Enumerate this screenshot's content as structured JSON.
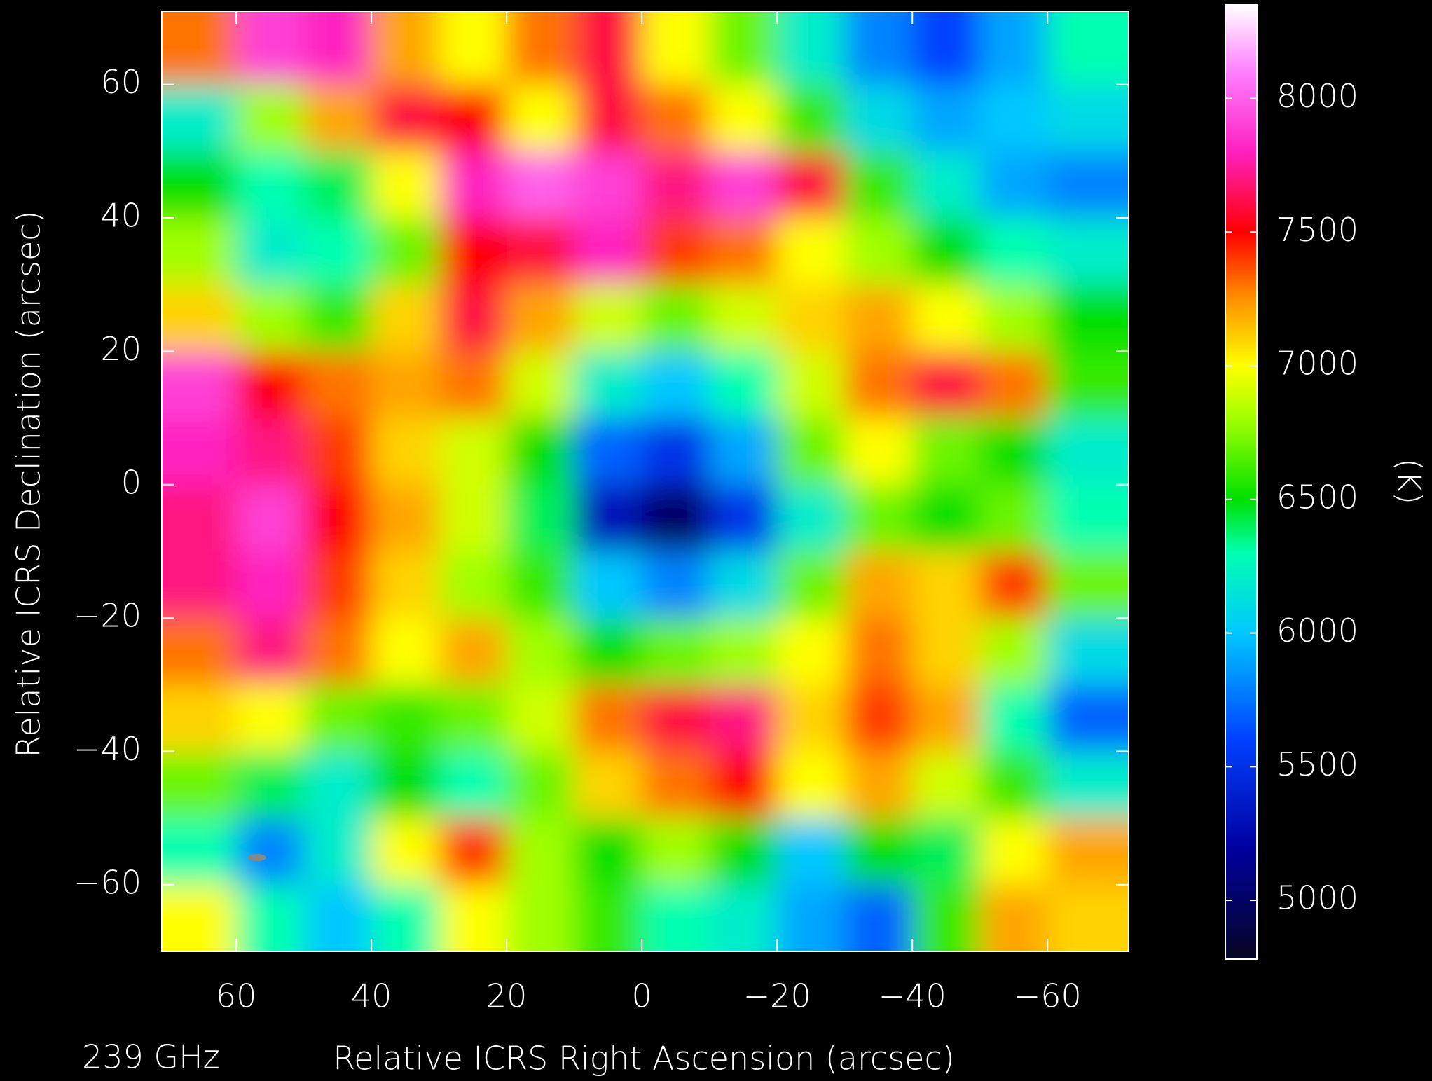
{
  "chart_data": {
    "type": "heatmap",
    "frequency_label": "239 GHz",
    "x_label": "Relative ICRS Right Ascension (arcsec)",
    "y_label": "Relative ICRS Declination (arcsec)",
    "colorbar_label": "(K)",
    "xlim": [
      71,
      -72
    ],
    "ylim": [
      -70,
      71
    ],
    "xticks": [
      60,
      40,
      20,
      0,
      {
        "value": -20,
        "label": "−20"
      },
      {
        "value": -40,
        "label": "−40"
      },
      {
        "value": -60,
        "label": "−60"
      }
    ],
    "yticks": [
      {
        "value": -60,
        "label": "−60"
      },
      {
        "value": -40,
        "label": "−40"
      },
      {
        "value": -20,
        "label": "−20"
      },
      0,
      20,
      40,
      60
    ],
    "clim": [
      4780,
      8350
    ],
    "cticks": [
      5000,
      5500,
      6000,
      6500,
      7000,
      7500,
      8000
    ],
    "colormap": [
      {
        "value": 4800,
        "color": "#05052a"
      },
      {
        "value": 5200,
        "color": "#0000a0"
      },
      {
        "value": 5600,
        "color": "#0040ff"
      },
      {
        "value": 6000,
        "color": "#00c8ff"
      },
      {
        "value": 6300,
        "color": "#00ffb0"
      },
      {
        "value": 6500,
        "color": "#00e000"
      },
      {
        "value": 6800,
        "color": "#a0ff00"
      },
      {
        "value": 7000,
        "color": "#ffff00"
      },
      {
        "value": 7250,
        "color": "#ff9000"
      },
      {
        "value": 7500,
        "color": "#ff0000"
      },
      {
        "value": 7800,
        "color": "#ff20c0"
      },
      {
        "value": 8100,
        "color": "#ff80ff"
      },
      {
        "value": 8350,
        "color": "#ffffff"
      }
    ],
    "x": [
      65,
      55,
      45,
      35,
      25,
      15,
      5,
      -5,
      -15,
      -25,
      -35,
      -45,
      -55,
      -65
    ],
    "y": [
      65,
      55,
      45,
      35,
      25,
      15,
      5,
      -5,
      -15,
      -25,
      -35,
      -45,
      -55,
      -65
    ],
    "z": [
      [
        7300,
        7900,
        7800,
        7200,
        7000,
        7300,
        7600,
        7000,
        6700,
        6200,
        5800,
        5600,
        5900,
        6300
      ],
      [
        6200,
        6800,
        7200,
        7600,
        7500,
        7000,
        7600,
        7300,
        7000,
        6600,
        6100,
        5900,
        6000,
        6100
      ],
      [
        6500,
        6300,
        6400,
        7000,
        7800,
        8000,
        7900,
        7700,
        7900,
        7600,
        6600,
        6200,
        5900,
        5800
      ],
      [
        6800,
        6200,
        6300,
        6700,
        7500,
        7600,
        7800,
        7400,
        7300,
        7000,
        6800,
        6500,
        6300,
        6200
      ],
      [
        7100,
        6800,
        6600,
        7100,
        7600,
        7200,
        6900,
        6700,
        6900,
        7100,
        7200,
        7000,
        6800,
        6500
      ],
      [
        7900,
        7500,
        7300,
        7200,
        7300,
        6900,
        6200,
        6000,
        6300,
        6900,
        7300,
        7600,
        7300,
        6600
      ],
      [
        7800,
        7700,
        7400,
        7100,
        6900,
        6500,
        5700,
        5500,
        5900,
        6700,
        7000,
        6700,
        6500,
        6200
      ],
      [
        7700,
        7900,
        7500,
        7200,
        6900,
        6400,
        5300,
        5000,
        5500,
        6200,
        6700,
        6500,
        6700,
        6300
      ],
      [
        7700,
        7800,
        7400,
        7100,
        6800,
        6600,
        6000,
        5800,
        6100,
        6700,
        7200,
        7100,
        7400,
        6700
      ],
      [
        7300,
        7700,
        7300,
        7000,
        7200,
        6800,
        6500,
        6700,
        6800,
        7000,
        7300,
        7100,
        6800,
        6100
      ],
      [
        7100,
        7000,
        6700,
        6600,
        6700,
        6900,
        7300,
        7600,
        7700,
        7100,
        7400,
        7200,
        6300,
        5700
      ],
      [
        6700,
        6400,
        6200,
        6500,
        6300,
        6700,
        7100,
        7300,
        7500,
        7000,
        7200,
        6900,
        6600,
        6200
      ],
      [
        6300,
        5800,
        6200,
        7000,
        7400,
        6800,
        6500,
        6800,
        6500,
        6000,
        6500,
        6400,
        7000,
        7200
      ],
      [
        7000,
        6300,
        6000,
        6300,
        7000,
        6800,
        6600,
        6300,
        6200,
        5900,
        5700,
        6600,
        7200,
        7100
      ]
    ]
  }
}
